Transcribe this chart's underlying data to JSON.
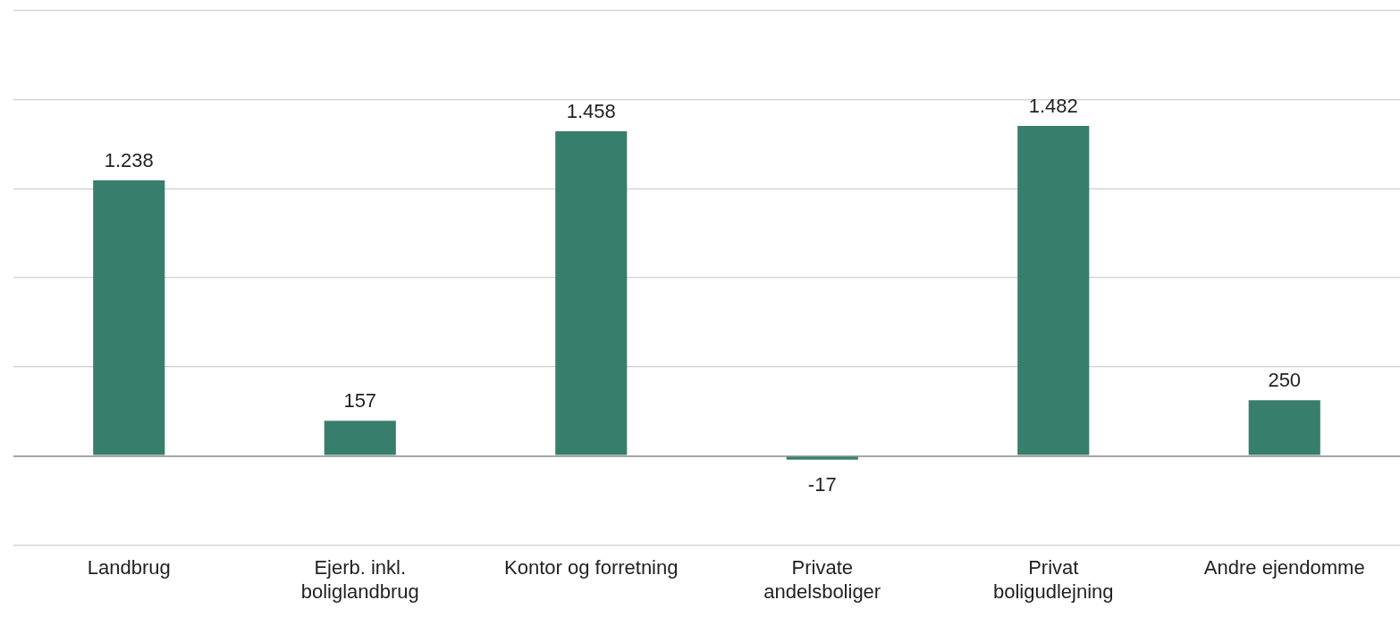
{
  "chart_data": {
    "type": "bar",
    "categories": [
      "Landbrug",
      "Ejerb. inkl. boliglandbrug",
      "Kontor og forretning",
      "Private andelsboliger",
      "Privat boligudlejning",
      "Andre ejendomme"
    ],
    "values": [
      1238,
      157,
      1458,
      -17,
      1482,
      250
    ],
    "value_labels": [
      "1.238",
      "157",
      "1.458",
      "-17",
      "1.482",
      "250"
    ],
    "color": "#387e6c",
    "ylim": [
      -400,
      2000
    ],
    "yticks": [
      {
        "value": -400,
        "label": null
      },
      {
        "value": 0,
        "label": null
      },
      {
        "value": 400,
        "label": null
      },
      {
        "value": 800,
        "label": null
      },
      {
        "value": 1200,
        "label": null
      },
      {
        "value": 1600,
        "label": null
      },
      {
        "value": 2000,
        "label": null
      }
    ],
    "tick_labels": "x",
    "grid": "y",
    "legend": false
  }
}
